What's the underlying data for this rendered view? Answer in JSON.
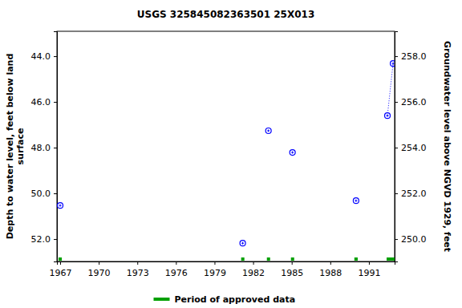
{
  "chart_data": {
    "type": "scatter",
    "title": "USGS 325845082363501 25X013",
    "ylabel": [
      "Depth to water level, feet below land",
      "surface"
    ],
    "y2label": "Groundwater level above NGVD 1929, feet",
    "xlim": [
      1966.75,
      1993.0
    ],
    "xticks": [
      1967,
      1970,
      1973,
      1976,
      1979,
      1982,
      1985,
      1988,
      1991
    ],
    "ylim": [
      52.98,
      42.91
    ],
    "yticks": [
      {
        "value": 44,
        "label": "44.0"
      },
      {
        "value": 46,
        "label": "46.0"
      },
      {
        "value": 48,
        "label": "48.0"
      },
      {
        "value": 50,
        "label": "50.0"
      },
      {
        "value": 52,
        "label": "52.0"
      }
    ],
    "y2lim": [
      249.02,
      259.09
    ],
    "y2ticks": [
      {
        "value": 250,
        "label": "250.0"
      },
      {
        "value": 252,
        "label": "252.0"
      },
      {
        "value": 254,
        "label": "254.0"
      },
      {
        "value": 256,
        "label": "256.0"
      },
      {
        "value": 258,
        "label": "258.0"
      }
    ],
    "grid": false,
    "legend": "bottom",
    "series": [
      {
        "type": "scatter",
        "marker": "circle",
        "color": "#0000ff",
        "x": [
          1967.0,
          1981.19,
          1983.19,
          1985.06,
          1990.0,
          1992.44,
          1992.88
        ],
        "values": [
          50.53,
          52.18,
          47.26,
          48.21,
          50.32,
          46.6,
          44.32
        ]
      },
      {
        "type": "line",
        "line_style": "dotted",
        "color": "#0000ff",
        "x": [
          1992.44,
          1992.88
        ],
        "values": [
          46.6,
          44.32
        ]
      }
    ],
    "periods": {
      "name": "Period of approved data",
      "color": "#00a000",
      "start": [
        1966.87,
        1981.07,
        1983.07,
        1984.94,
        1989.87,
        1992.38
      ],
      "end": [
        1967.13,
        1981.32,
        1983.32,
        1985.19,
        1990.13,
        1993.0
      ]
    }
  }
}
